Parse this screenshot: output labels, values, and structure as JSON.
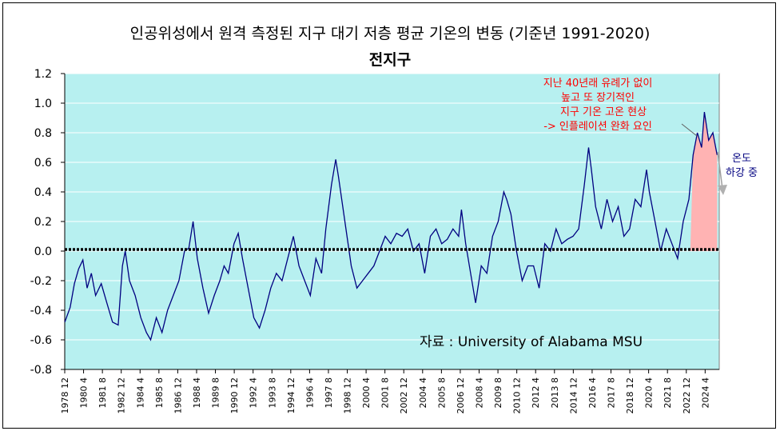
{
  "chart_data": {
    "type": "line",
    "title": "인공위성에서 원격 측정된 지구 대기 저층 평균 기온의 변동 (기준년 1991-2020)",
    "subtitle": "전지구",
    "ylim": [
      -0.8,
      1.2
    ],
    "yticks": [
      "1.2",
      "1.0",
      "0.8",
      "0.6",
      "0.4",
      "0.2",
      "0.0",
      "-0.2",
      "-0.4",
      "-0.6",
      "-0.8"
    ],
    "ytick_values": [
      1.2,
      1.0,
      0.8,
      0.6,
      0.4,
      0.2,
      0.0,
      -0.2,
      -0.4,
      -0.6,
      -0.8
    ],
    "xlim": [
      1978.917,
      2025.25
    ],
    "xticks": [
      "1978 12",
      "1980 4",
      "1981 8",
      "1982 12",
      "1984 4",
      "1985 8",
      "1986 12",
      "1988 4",
      "1989 8",
      "1990 12",
      "1992 4",
      "1993 8",
      "1994 12",
      "1996 4",
      "1997 8",
      "1998 12",
      "2000 4",
      "2001 8",
      "2002 12",
      "2004 4",
      "2005 8",
      "2006 12",
      "2008 4",
      "2009 8",
      "2010 12",
      "2012 4",
      "2013 8",
      "2014 12",
      "2016 4",
      "2017 8",
      "2018 12",
      "2020 4",
      "2021 8",
      "2022 12",
      "2024 4"
    ],
    "grid": true,
    "background": "#b7f0f0",
    "colors": {
      "series": "#000080",
      "baseline": "#000000",
      "highlight": "#ffb3b3",
      "annotation": "#ff0000",
      "note": "#000080"
    },
    "baseline_value": 0.0,
    "series": [
      {
        "name": "",
        "x": [
          1978.92,
          1979.3,
          1979.6,
          1979.9,
          1980.2,
          1980.5,
          1980.8,
          1981.1,
          1981.5,
          1981.9,
          1982.3,
          1982.7,
          1983.0,
          1983.2,
          1983.5,
          1983.9,
          1984.3,
          1984.7,
          1985.0,
          1985.4,
          1985.8,
          1986.2,
          1986.6,
          1987.0,
          1987.4,
          1987.7,
          1988.0,
          1988.3,
          1988.7,
          1989.1,
          1989.5,
          1989.9,
          1990.2,
          1990.5,
          1990.9,
          1991.2,
          1991.5,
          1991.9,
          1992.3,
          1992.7,
          1993.1,
          1993.5,
          1993.9,
          1994.3,
          1994.7,
          1995.1,
          1995.5,
          1995.9,
          1996.3,
          1996.7,
          1997.1,
          1997.4,
          1997.8,
          1998.1,
          1998.3,
          1998.6,
          1998.9,
          1999.2,
          1999.6,
          2000.0,
          2000.4,
          2000.8,
          2001.2,
          2001.6,
          2002.0,
          2002.4,
          2002.8,
          2003.2,
          2003.6,
          2004.0,
          2004.4,
          2004.8,
          2005.2,
          2005.6,
          2006.0,
          2006.4,
          2006.8,
          2007.0,
          2007.3,
          2007.7,
          2008.0,
          2008.4,
          2008.8,
          2009.2,
          2009.6,
          2010.0,
          2010.2,
          2010.5,
          2010.9,
          2011.3,
          2011.7,
          2012.1,
          2012.5,
          2012.9,
          2013.3,
          2013.7,
          2014.1,
          2014.5,
          2014.9,
          2015.3,
          2015.7,
          2016.0,
          2016.2,
          2016.5,
          2016.9,
          2017.3,
          2017.7,
          2018.1,
          2018.5,
          2018.9,
          2019.3,
          2019.7,
          2020.1,
          2020.3,
          2020.7,
          2021.1,
          2021.5,
          2021.9,
          2022.3,
          2022.7,
          2023.1,
          2023.4,
          2023.7,
          2024.0,
          2024.2,
          2024.5,
          2024.8,
          2025.1
        ],
        "values": [
          -0.48,
          -0.38,
          -0.22,
          -0.12,
          -0.06,
          -0.25,
          -0.15,
          -0.3,
          -0.22,
          -0.35,
          -0.48,
          -0.5,
          -0.1,
          0.0,
          -0.2,
          -0.3,
          -0.45,
          -0.55,
          -0.6,
          -0.45,
          -0.55,
          -0.4,
          -0.3,
          -0.2,
          0.0,
          0.02,
          0.2,
          -0.05,
          -0.25,
          -0.42,
          -0.3,
          -0.2,
          -0.1,
          -0.15,
          0.05,
          0.12,
          -0.05,
          -0.25,
          -0.45,
          -0.52,
          -0.4,
          -0.25,
          -0.15,
          -0.2,
          -0.05,
          0.1,
          -0.1,
          -0.2,
          -0.3,
          -0.05,
          -0.15,
          0.15,
          0.45,
          0.62,
          0.5,
          0.3,
          0.1,
          -0.1,
          -0.25,
          -0.2,
          -0.15,
          -0.1,
          0.0,
          0.1,
          0.05,
          0.12,
          0.1,
          0.15,
          0.0,
          0.05,
          -0.15,
          0.1,
          0.15,
          0.05,
          0.08,
          0.15,
          0.1,
          0.28,
          0.05,
          -0.18,
          -0.35,
          -0.1,
          -0.15,
          0.1,
          0.2,
          0.4,
          0.35,
          0.25,
          0.0,
          -0.2,
          -0.1,
          -0.1,
          -0.25,
          0.05,
          0.0,
          0.15,
          0.05,
          0.08,
          0.1,
          0.15,
          0.45,
          0.7,
          0.55,
          0.3,
          0.15,
          0.35,
          0.2,
          0.3,
          0.1,
          0.15,
          0.35,
          0.3,
          0.55,
          0.4,
          0.2,
          0.0,
          0.15,
          0.05,
          -0.05,
          0.2,
          0.35,
          0.65,
          0.8,
          0.7,
          0.94,
          0.75,
          0.8,
          0.65
        ]
      }
    ],
    "highlight_range": [
      2023.2,
      2025.25
    ],
    "annotations": {
      "red_note": [
        "지난 40년래 유례가 없이",
        "높고 또 장기적인",
        "지구 기온 고온 현상",
        "-> 인플레이션 완화 요인"
      ],
      "temp_drop_note": [
        "온도",
        "하강 중"
      ],
      "source_note": "자료 :  University of Alabama MSU"
    }
  }
}
